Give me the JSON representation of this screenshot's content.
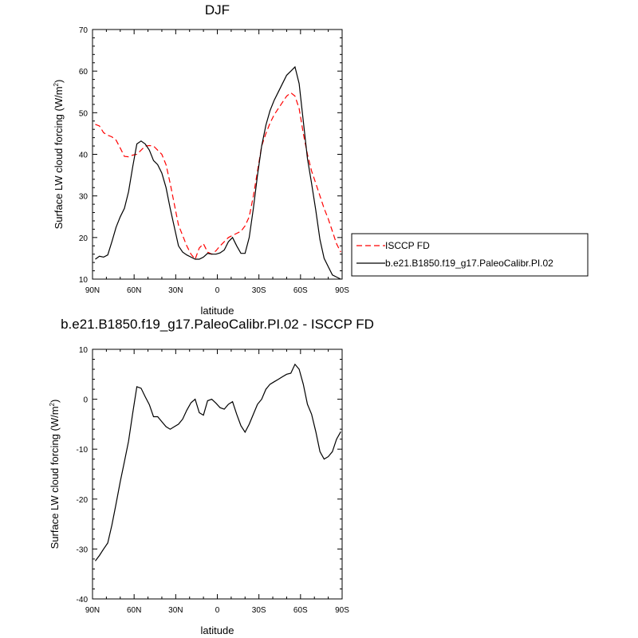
{
  "chart_data": [
    {
      "type": "line",
      "title": "DJF",
      "xlabel": "latitude",
      "ylabel": "Surface LW cloud forcing (W/m",
      "ylabel_sup": "2",
      "ylabel_close": ")",
      "xlim": [
        90,
        -90
      ],
      "ylim": [
        10,
        70
      ],
      "x_ticks": [
        90,
        60,
        30,
        0,
        -30,
        -60,
        -90
      ],
      "x_tick_labels": [
        "90N",
        "60N",
        "30N",
        "0",
        "30S",
        "60S",
        "90S"
      ],
      "y_ticks": [
        10,
        20,
        30,
        40,
        50,
        60,
        70
      ],
      "y_tick_labels": [
        "10",
        "20",
        "30",
        "40",
        "50",
        "60",
        "70"
      ],
      "legend": {
        "position": "right"
      },
      "series": [
        {
          "name": "ISCCP FD",
          "color": "#ff0000",
          "dash": "dashed",
          "x": [
            88,
            85,
            82,
            79,
            76,
            73,
            70,
            67,
            64,
            61,
            58,
            55,
            52,
            49,
            46,
            43,
            40,
            37,
            34,
            31,
            28,
            25,
            22,
            19,
            16,
            13,
            10,
            7,
            4,
            1,
            -2,
            -5,
            -8,
            -11,
            -14,
            -17,
            -20,
            -23,
            -26,
            -29,
            -32,
            -35,
            -38,
            -41,
            -44,
            -47,
            -50,
            -53,
            -56,
            -59,
            -62,
            -65,
            -68,
            -71,
            -74,
            -77,
            -80,
            -83,
            -86,
            -89
          ],
          "y": [
            47.2,
            46.8,
            45.2,
            44.6,
            44.2,
            43.4,
            41.5,
            39.5,
            39.4,
            39.8,
            40.0,
            41.0,
            42.0,
            42.1,
            42.0,
            41.0,
            40.0,
            37.5,
            33.0,
            28.0,
            23.0,
            20.5,
            18.0,
            16.0,
            14.8,
            17.5,
            18.5,
            16.5,
            16.0,
            16.8,
            18.0,
            19.0,
            20.0,
            20.5,
            21.0,
            21.5,
            22.8,
            25.0,
            30.0,
            36.0,
            42.0,
            45.0,
            47.5,
            49.5,
            51.0,
            52.5,
            54.0,
            54.8,
            54.0,
            51.0,
            45.0,
            40.0,
            36.0,
            33.0,
            30.0,
            27.0,
            24.5,
            21.5,
            18.5,
            16.5
          ]
        },
        {
          "name": "b.e21.B1850.f19_g17.PaleoCalibr.PI.02",
          "color": "#000000",
          "dash": "solid",
          "x": [
            88,
            85,
            82,
            79,
            76,
            73,
            70,
            67,
            64,
            61,
            58,
            55,
            52,
            49,
            46,
            43,
            40,
            37,
            34,
            31,
            28,
            25,
            22,
            19,
            16,
            13,
            10,
            7,
            4,
            1,
            -2,
            -5,
            -8,
            -11,
            -14,
            -17,
            -20,
            -23,
            -26,
            -29,
            -32,
            -35,
            -38,
            -41,
            -44,
            -47,
            -50,
            -53,
            -56,
            -59,
            -62,
            -65,
            -68,
            -71,
            -74,
            -77,
            -80,
            -83,
            -86,
            -89
          ],
          "y": [
            14.8,
            15.5,
            15.3,
            15.8,
            19.0,
            22.5,
            25.0,
            27.0,
            31.0,
            37.0,
            42.5,
            43.2,
            42.5,
            41.0,
            38.5,
            37.5,
            35.5,
            32.0,
            27.0,
            22.5,
            18.0,
            16.5,
            15.8,
            15.3,
            14.8,
            14.8,
            15.3,
            16.2,
            16.0,
            16.0,
            16.3,
            17.0,
            19.0,
            20.0,
            18.0,
            16.2,
            16.2,
            20.0,
            27.0,
            35.0,
            42.0,
            47.0,
            50.5,
            53.0,
            55.0,
            57.0,
            59.0,
            60.0,
            61.0,
            57.0,
            48.0,
            39.0,
            33.0,
            26.5,
            19.5,
            15.0,
            13.0,
            11.0,
            10.5,
            10.0
          ]
        }
      ]
    },
    {
      "type": "line",
      "title": "b.e21.B1850.f19_g17.PaleoCalibr.PI.02 - ISCCP FD",
      "xlabel": "latitude",
      "ylabel": "Surface LW cloud forcing (W/m",
      "ylabel_sup": "2",
      "ylabel_close": ")",
      "xlim": [
        90,
        -90
      ],
      "ylim": [
        -40,
        10
      ],
      "x_ticks": [
        90,
        60,
        30,
        0,
        -30,
        -60,
        -90
      ],
      "x_tick_labels": [
        "90N",
        "60N",
        "30N",
        "0",
        "30S",
        "60S",
        "90S"
      ],
      "y_ticks": [
        -40,
        -30,
        -20,
        -10,
        0,
        10
      ],
      "y_tick_labels": [
        "-40",
        "-30",
        "-20",
        "-10",
        "0",
        "10"
      ],
      "series": [
        {
          "color": "#000000",
          "dash": "solid",
          "x": [
            88,
            85,
            82,
            79,
            76,
            73,
            70,
            67,
            64,
            61,
            58,
            55,
            52,
            49,
            46,
            43,
            40,
            37,
            34,
            31,
            28,
            25,
            22,
            19,
            16,
            13,
            10,
            7,
            4,
            1,
            -2,
            -5,
            -8,
            -11,
            -14,
            -17,
            -20,
            -23,
            -26,
            -29,
            -32,
            -35,
            -38,
            -41,
            -44,
            -47,
            -50,
            -53,
            -56,
            -59,
            -62,
            -65,
            -68,
            -71,
            -74,
            -77,
            -80,
            -83,
            -86,
            -89
          ],
          "y": [
            -32.4,
            -31.3,
            -30.0,
            -28.8,
            -25.2,
            -20.9,
            -16.5,
            -12.5,
            -8.4,
            -2.8,
            2.5,
            2.2,
            0.5,
            -1.1,
            -3.5,
            -3.5,
            -4.5,
            -5.5,
            -6.0,
            -5.5,
            -5.0,
            -4.0,
            -2.2,
            -0.7,
            0.0,
            -2.7,
            -3.2,
            -0.3,
            0.0,
            -0.8,
            -1.7,
            -2.0,
            -1.0,
            -0.5,
            -3.0,
            -5.3,
            -6.6,
            -5.0,
            -3.0,
            -1.0,
            0.0,
            2.0,
            3.0,
            3.5,
            4.0,
            4.5,
            5.0,
            5.2,
            7.0,
            6.0,
            3.0,
            -1.0,
            -3.0,
            -6.5,
            -10.5,
            -12.0,
            -11.5,
            -10.5,
            -8.0,
            -6.5
          ]
        }
      ]
    }
  ]
}
